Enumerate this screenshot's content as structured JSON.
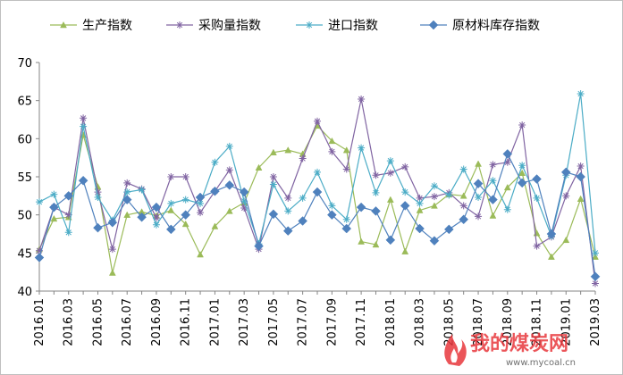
{
  "chart_data": {
    "type": "line",
    "title": "",
    "xlabel": "",
    "ylabel": "",
    "ylim": [
      40,
      70
    ],
    "yticks": [
      40,
      45,
      50,
      55,
      60,
      65,
      70
    ],
    "grid": false,
    "legend_position": "top",
    "x": [
      "2016.01",
      "2016.02",
      "2016.03",
      "2016.04",
      "2016.05",
      "2016.06",
      "2016.07",
      "2016.08",
      "2016.09",
      "2016.10",
      "2016.11",
      "2016.12",
      "2017.01",
      "2017.02",
      "2017.03",
      "2017.04",
      "2017.05",
      "2017.06",
      "2017.07",
      "2017.08",
      "2017.09",
      "2017.10",
      "2017.11",
      "2017.12",
      "2018.01",
      "2018.02",
      "2018.03",
      "2018.04",
      "2018.05",
      "2018.06",
      "2018.07",
      "2018.08",
      "2018.09",
      "2018.10",
      "2018.11",
      "2018.12",
      "2019.01",
      "2019.02",
      "2019.03"
    ],
    "x_tick_labels": [
      "2016.01",
      "2016.03",
      "2016.05",
      "2016.07",
      "2016.09",
      "2016.11",
      "2017.01",
      "2017.03",
      "2017.05",
      "2017.07",
      "2017.09",
      "2017.11",
      "2018.01",
      "2018.03",
      "2018.05",
      "2018.07",
      "2018.09",
      "2018.11",
      "2019.01",
      "2019.03"
    ],
    "series": [
      {
        "name": "生产指数",
        "color": "#9bbb59",
        "marker": "triangle",
        "values": [
          45.5,
          49.5,
          49.7,
          60.5,
          53.7,
          42.4,
          50.0,
          50.4,
          49.9,
          50.6,
          48.8,
          44.8,
          48.5,
          50.5,
          51.6,
          56.2,
          58.2,
          58.5,
          58.0,
          61.7,
          59.7,
          58.5,
          46.5,
          46.1,
          52.0,
          45.2,
          50.6,
          51.2,
          52.7,
          52.5,
          56.7,
          49.9,
          53.6,
          55.5,
          47.6,
          44.5,
          46.7,
          52.1,
          44.5
        ]
      },
      {
        "name": "采购量指数",
        "color": "#8064a2",
        "marker": "asterisk",
        "values": [
          45.3,
          51.0,
          50.0,
          62.7,
          53.0,
          45.5,
          54.2,
          53.4,
          49.6,
          55.0,
          55.0,
          50.3,
          53.1,
          55.9,
          50.9,
          45.5,
          55.0,
          52.2,
          57.4,
          62.3,
          58.3,
          56.0,
          65.2,
          55.2,
          55.5,
          56.3,
          52.2,
          52.4,
          52.9,
          51.2,
          49.8,
          56.6,
          56.9,
          61.8,
          45.9,
          47.1,
          52.5,
          56.4,
          41.0
        ]
      },
      {
        "name": "进口指数",
        "color": "#4bacc6",
        "marker": "asterisk",
        "values": [
          51.7,
          52.7,
          47.7,
          61.6,
          52.3,
          49.3,
          53.0,
          53.3,
          48.7,
          51.5,
          52.0,
          51.5,
          56.9,
          59.0,
          51.8,
          46.2,
          54.0,
          50.5,
          52.2,
          55.6,
          51.2,
          49.4,
          58.8,
          52.9,
          57.1,
          53.0,
          51.5,
          53.8,
          52.6,
          56.0,
          52.3,
          54.5,
          50.7,
          56.5,
          52.2,
          47.2,
          55.2,
          65.9,
          45.0
        ]
      },
      {
        "name": "原材料库存指数",
        "color": "#4f81bd",
        "marker": "diamond",
        "values": [
          44.4,
          51.0,
          52.5,
          54.5,
          48.3,
          49.0,
          52.0,
          49.7,
          51.0,
          48.1,
          50.0,
          52.3,
          53.1,
          53.9,
          53.0,
          45.9,
          50.1,
          47.9,
          49.2,
          53.0,
          50.0,
          48.2,
          51.0,
          50.5,
          46.7,
          51.2,
          48.2,
          46.6,
          48.1,
          49.4,
          54.1,
          52.0,
          58.0,
          54.2,
          54.7,
          47.5,
          55.6,
          55.0,
          41.9
        ]
      }
    ]
  },
  "watermark": {
    "text": "我的煤炭网",
    "url": "www.mycoal.cn"
  }
}
